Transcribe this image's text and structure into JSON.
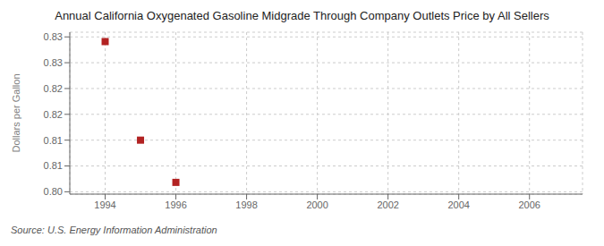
{
  "chart_data": {
    "type": "scatter",
    "title": "Annual California Oxygenated Gasoline Midgrade Through Company Outlets Price by All Sellers",
    "ylabel": "Dollars per Gallon",
    "annotations": [
      "Source: U.S. Energy Information Administration"
    ],
    "x": [
      1994,
      1995,
      1996
    ],
    "values": [
      0.832,
      0.811,
      0.802
    ],
    "color": "#b22222",
    "marker": "square",
    "xlim": [
      1993.0,
      2007.5
    ],
    "xticks": [
      1994,
      1996,
      1998,
      2000,
      2002,
      2004,
      2006
    ],
    "ylim": [
      0.7995,
      0.834
    ],
    "yticks": [
      {
        "value": 0.8,
        "label": "0.80"
      },
      {
        "value": 0.8055,
        "label": "0.81"
      },
      {
        "value": 0.811,
        "label": "0.81"
      },
      {
        "value": 0.8165,
        "label": "0.82"
      },
      {
        "value": 0.822,
        "label": "0.82"
      },
      {
        "value": 0.8275,
        "label": "0.83"
      },
      {
        "value": 0.833,
        "label": "0.83"
      }
    ],
    "grid": true
  }
}
